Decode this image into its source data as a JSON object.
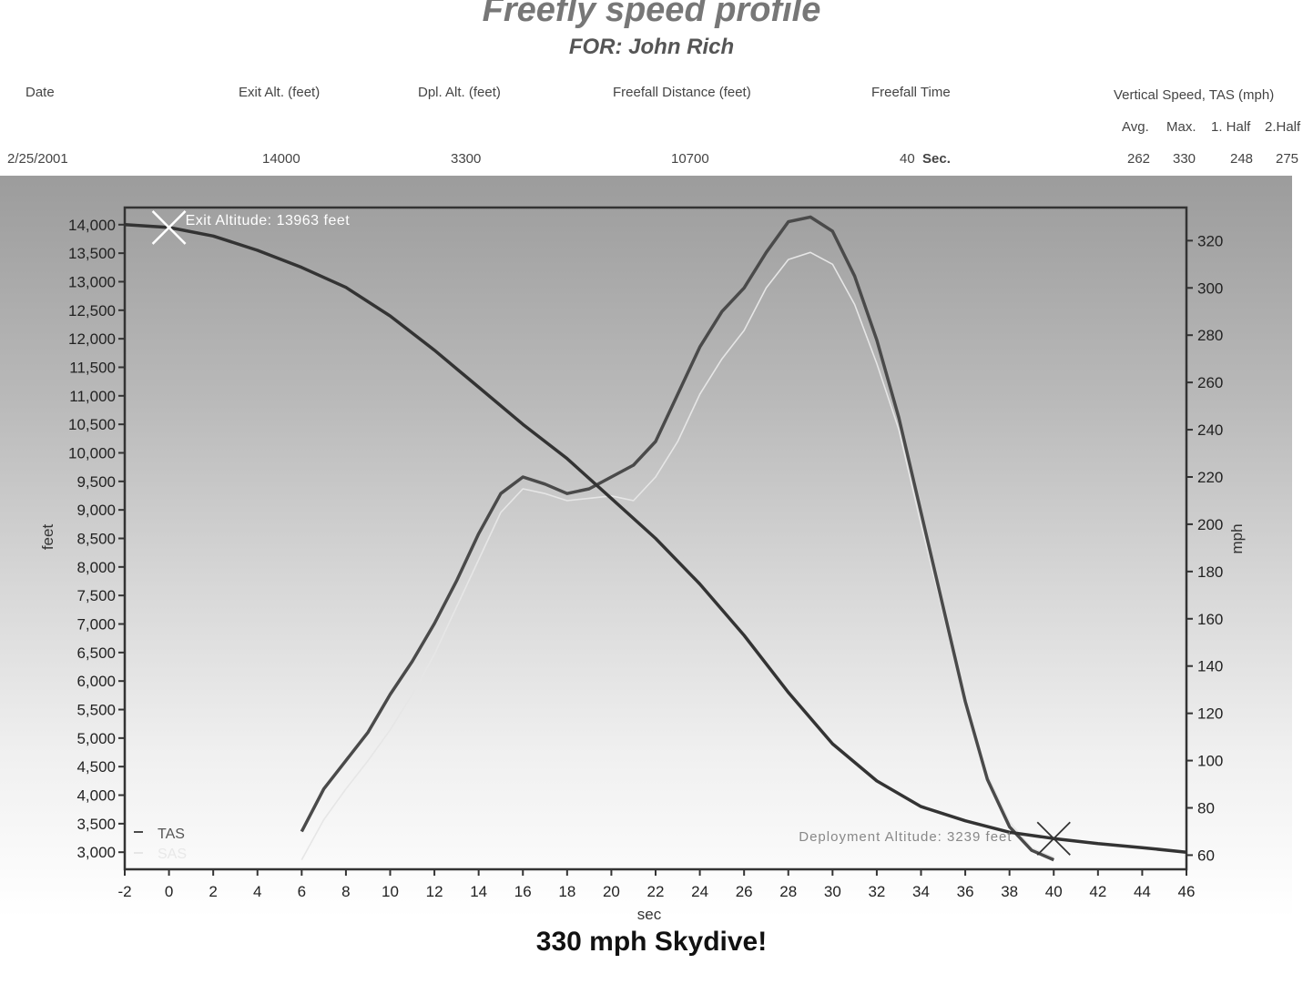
{
  "header": {
    "title": "Freefly speed profile",
    "subtitle": "FOR:  John Rich",
    "columns": {
      "date": "Date",
      "exit_alt": "Exit Alt. (feet)",
      "dpl_alt": "Dpl. Alt. (feet)",
      "freefall_distance": "Freefall Distance (feet)",
      "freefall_time": "Freefall Time",
      "vertical_speed": "Vertical Speed, TAS (mph)"
    },
    "speed_subcols": {
      "avg": "Avg.",
      "max": "Max.",
      "half1": "1. Half",
      "half2": "2.Half"
    },
    "values": {
      "date": "2/25/2001",
      "exit_alt": "14000",
      "dpl_alt": "3300",
      "freefall_distance": "10700",
      "freefall_time": "40",
      "freefall_time_unit": "Sec.",
      "avg": "262",
      "max": "330",
      "half1": "248",
      "half2": "275"
    }
  },
  "caption": "330 mph Skydive!",
  "chart_data": {
    "type": "line",
    "xlabel": "sec",
    "ylabel_left": "feet",
    "ylabel_right": "mph",
    "xlim": [
      -2,
      46
    ],
    "x_ticks": [
      -2,
      0,
      2,
      4,
      6,
      8,
      10,
      12,
      14,
      16,
      18,
      20,
      22,
      24,
      26,
      28,
      30,
      32,
      34,
      36,
      38,
      40,
      42,
      44,
      46
    ],
    "ylim_left": [
      2700,
      14300
    ],
    "y_ticks_left": [
      3000,
      3500,
      4000,
      4500,
      5000,
      5500,
      6000,
      6500,
      7000,
      7500,
      8000,
      8500,
      9000,
      9500,
      10000,
      10500,
      11000,
      11500,
      12000,
      12500,
      13000,
      13500,
      14000
    ],
    "y_ticks_left_labels": [
      "3,000",
      "3,500",
      "4,000",
      "4,500",
      "5,000",
      "5,500",
      "6,000",
      "6,500",
      "7,000",
      "7,500",
      "8,000",
      "8,500",
      "9,000",
      "9,500",
      "10,000",
      "10,500",
      "11,000",
      "11,500",
      "12,000",
      "12,500",
      "13,000",
      "13,500",
      "14,000"
    ],
    "ylim_right": [
      54,
      334
    ],
    "y_ticks_right": [
      60,
      80,
      100,
      120,
      140,
      160,
      180,
      200,
      220,
      240,
      260,
      280,
      300,
      320
    ],
    "legend": {
      "position": "bottom-left",
      "entries": [
        "TAS",
        "SAS"
      ]
    },
    "annotations": {
      "exit": {
        "label": "Exit Altitude: 13963 feet",
        "x": 0,
        "y": 13950
      },
      "deployment": {
        "label": "Deployment Altitude: 3239 feet",
        "x": 40,
        "y": 3239
      }
    },
    "series": [
      {
        "name": "Altitude",
        "axis": "left",
        "color": "#333333",
        "points": [
          [
            -2,
            14000
          ],
          [
            0,
            13950
          ],
          [
            2,
            13800
          ],
          [
            4,
            13550
          ],
          [
            6,
            13250
          ],
          [
            8,
            12900
          ],
          [
            10,
            12400
          ],
          [
            12,
            11800
          ],
          [
            14,
            11150
          ],
          [
            16,
            10500
          ],
          [
            18,
            9900
          ],
          [
            20,
            9200
          ],
          [
            22,
            8500
          ],
          [
            24,
            7700
          ],
          [
            26,
            6800
          ],
          [
            28,
            5800
          ],
          [
            30,
            4900
          ],
          [
            32,
            4250
          ],
          [
            34,
            3800
          ],
          [
            36,
            3550
          ],
          [
            38,
            3350
          ],
          [
            40,
            3240
          ],
          [
            42,
            3150
          ],
          [
            44,
            3080
          ],
          [
            46,
            3000
          ]
        ]
      },
      {
        "name": "TAS",
        "axis": "right",
        "color": "#4a4a4a",
        "points": [
          [
            6,
            70
          ],
          [
            7,
            88
          ],
          [
            8,
            100
          ],
          [
            9,
            112
          ],
          [
            10,
            128
          ],
          [
            11,
            142
          ],
          [
            12,
            158
          ],
          [
            13,
            176
          ],
          [
            14,
            196
          ],
          [
            15,
            213
          ],
          [
            16,
            220
          ],
          [
            17,
            217
          ],
          [
            18,
            213
          ],
          [
            19,
            215
          ],
          [
            20,
            220
          ],
          [
            21,
            225
          ],
          [
            22,
            235
          ],
          [
            23,
            255
          ],
          [
            24,
            275
          ],
          [
            25,
            290
          ],
          [
            26,
            300
          ],
          [
            27,
            315
          ],
          [
            28,
            328
          ],
          [
            29,
            330
          ],
          [
            30,
            324
          ],
          [
            31,
            305
          ],
          [
            32,
            278
          ],
          [
            33,
            245
          ],
          [
            34,
            205
          ],
          [
            35,
            165
          ],
          [
            36,
            125
          ],
          [
            37,
            92
          ],
          [
            38,
            72
          ],
          [
            39,
            62
          ],
          [
            40,
            58
          ]
        ]
      },
      {
        "name": "SAS",
        "axis": "right",
        "color": "#e6e6e6",
        "points": [
          [
            6,
            58
          ],
          [
            7,
            75
          ],
          [
            8,
            88
          ],
          [
            9,
            100
          ],
          [
            10,
            113
          ],
          [
            11,
            128
          ],
          [
            12,
            145
          ],
          [
            13,
            165
          ],
          [
            14,
            185
          ],
          [
            15,
            205
          ],
          [
            16,
            215
          ],
          [
            17,
            213
          ],
          [
            18,
            210
          ],
          [
            19,
            211
          ],
          [
            20,
            212
          ],
          [
            21,
            210
          ],
          [
            22,
            220
          ],
          [
            23,
            235
          ],
          [
            24,
            255
          ],
          [
            25,
            270
          ],
          [
            26,
            282
          ],
          [
            27,
            300
          ],
          [
            28,
            312
          ],
          [
            29,
            315
          ],
          [
            30,
            310
          ],
          [
            31,
            293
          ],
          [
            32,
            268
          ],
          [
            33,
            240
          ],
          [
            34,
            200
          ],
          [
            35,
            162
          ],
          [
            36,
            125
          ],
          [
            37,
            94
          ],
          [
            38,
            74
          ],
          [
            39,
            63
          ],
          [
            40,
            59
          ]
        ]
      }
    ]
  }
}
